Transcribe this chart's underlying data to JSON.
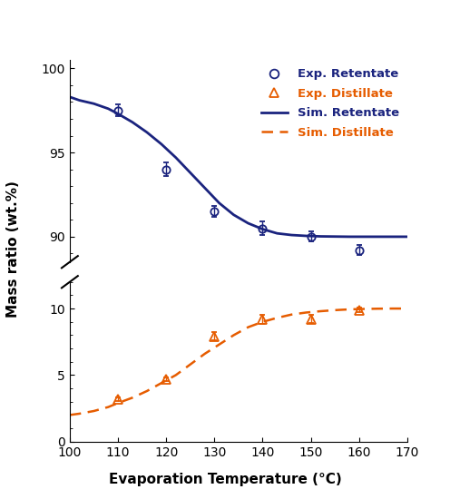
{
  "retentate_exp_x": [
    110,
    120,
    130,
    140,
    150,
    160
  ],
  "retentate_exp_y": [
    97.5,
    94.0,
    91.5,
    90.5,
    90.0,
    89.2
  ],
  "retentate_exp_yerr": [
    0.35,
    0.4,
    0.3,
    0.4,
    0.3,
    0.3
  ],
  "distillate_exp_x": [
    110,
    120,
    130,
    140,
    150,
    160
  ],
  "distillate_exp_y": [
    3.2,
    4.7,
    7.9,
    9.2,
    9.2,
    9.9
  ],
  "distillate_exp_yerr": [
    0.15,
    0.15,
    0.3,
    0.35,
    0.3,
    0.15
  ],
  "retentate_sim_x": [
    100,
    102,
    105,
    108,
    110,
    113,
    116,
    119,
    122,
    125,
    128,
    131,
    134,
    137,
    140,
    143,
    146,
    149,
    152,
    155,
    158,
    161,
    164,
    167,
    170
  ],
  "retentate_sim_y": [
    98.3,
    98.1,
    97.9,
    97.6,
    97.3,
    96.8,
    96.2,
    95.5,
    94.7,
    93.8,
    92.9,
    92.0,
    91.3,
    90.8,
    90.45,
    90.2,
    90.1,
    90.05,
    90.02,
    90.01,
    90.0,
    90.0,
    90.0,
    90.0,
    90.0
  ],
  "distillate_sim_x": [
    100,
    102,
    105,
    108,
    110,
    113,
    116,
    119,
    122,
    125,
    128,
    131,
    134,
    137,
    140,
    143,
    146,
    149,
    152,
    155,
    158,
    161,
    164,
    167,
    170
  ],
  "distillate_sim_y": [
    2.0,
    2.1,
    2.3,
    2.6,
    2.9,
    3.3,
    3.8,
    4.4,
    5.0,
    5.8,
    6.6,
    7.3,
    8.0,
    8.6,
    9.0,
    9.3,
    9.55,
    9.7,
    9.8,
    9.88,
    9.94,
    9.97,
    9.99,
    10.0,
    10.0
  ],
  "retentate_color": "#1a237e",
  "distillate_color": "#e65c00",
  "xlabel": "Evaporation Temperature (°C)",
  "ylabel": "Mass ratio (wt.%)",
  "upper_ylim": [
    88.5,
    100.5
  ],
  "upper_yticks": [
    90,
    95,
    100
  ],
  "lower_ylim": [
    0,
    12
  ],
  "lower_yticks": [
    0,
    5,
    10
  ],
  "xlim": [
    100,
    170
  ],
  "xticks": [
    100,
    110,
    120,
    130,
    140,
    150,
    160,
    170
  ]
}
